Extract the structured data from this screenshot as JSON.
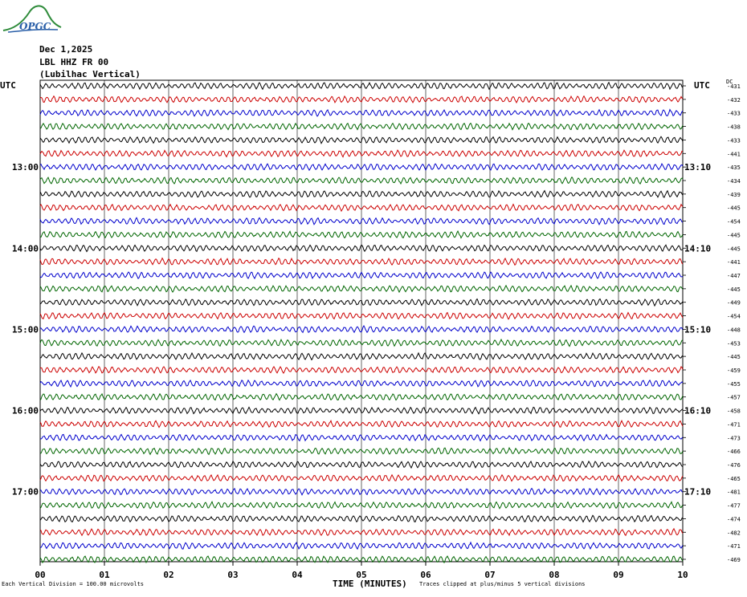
{
  "header": {
    "date": "Dec 1,2025",
    "station": "LBL HHZ FR 00",
    "location": "(Lubilhac Vertical)",
    "logo": "OPGC"
  },
  "axis": {
    "left_unit": "UTC",
    "right_unit": "UTC",
    "dc_label": "DC",
    "xlabel": "TIME (MINUTES)",
    "x_ticks": [
      "00",
      "01",
      "02",
      "03",
      "04",
      "05",
      "06",
      "07",
      "08",
      "09",
      "10"
    ]
  },
  "footer": {
    "scale": "Each Vertical Division =  100.00 microvolts",
    "clip": "Traces clipped at plus/minus 5 vertical divisions"
  },
  "colors": {
    "trace_cycle": [
      "#000000",
      "#cc0000",
      "#0000cc",
      "#006600"
    ],
    "grid": "#000000"
  },
  "chart_data": {
    "type": "line",
    "title": "",
    "xlabel": "TIME (MINUTES)",
    "xlim": [
      0,
      10
    ],
    "left_hour_labels": [
      {
        "row": 6,
        "label": "13:00"
      },
      {
        "row": 12,
        "label": "14:00"
      },
      {
        "row": 18,
        "label": "15:00"
      },
      {
        "row": 24,
        "label": "16:00"
      },
      {
        "row": 30,
        "label": "17:00"
      }
    ],
    "right_hour_labels": [
      {
        "row": 6,
        "label": "13:10"
      },
      {
        "row": 12,
        "label": "14:10"
      },
      {
        "row": 18,
        "label": "15:10"
      },
      {
        "row": 24,
        "label": "16:10"
      },
      {
        "row": 30,
        "label": "17:10"
      }
    ],
    "dc_offsets": [
      "-431",
      "-432",
      "-433",
      "-438",
      "-433",
      "-441",
      "-435",
      "-434",
      "-439",
      "-445",
      "-454",
      "-445",
      "-445",
      "-441",
      "-447",
      "-445",
      "-449",
      "-454",
      "-448",
      "-453",
      "-445",
      "-459",
      "-455",
      "-457",
      "-458",
      "-471",
      "-473",
      "-466",
      "-476",
      "-465",
      "-481",
      "-477",
      "-474",
      "-482",
      "-471",
      "-469"
    ],
    "trace_count": 36
  }
}
